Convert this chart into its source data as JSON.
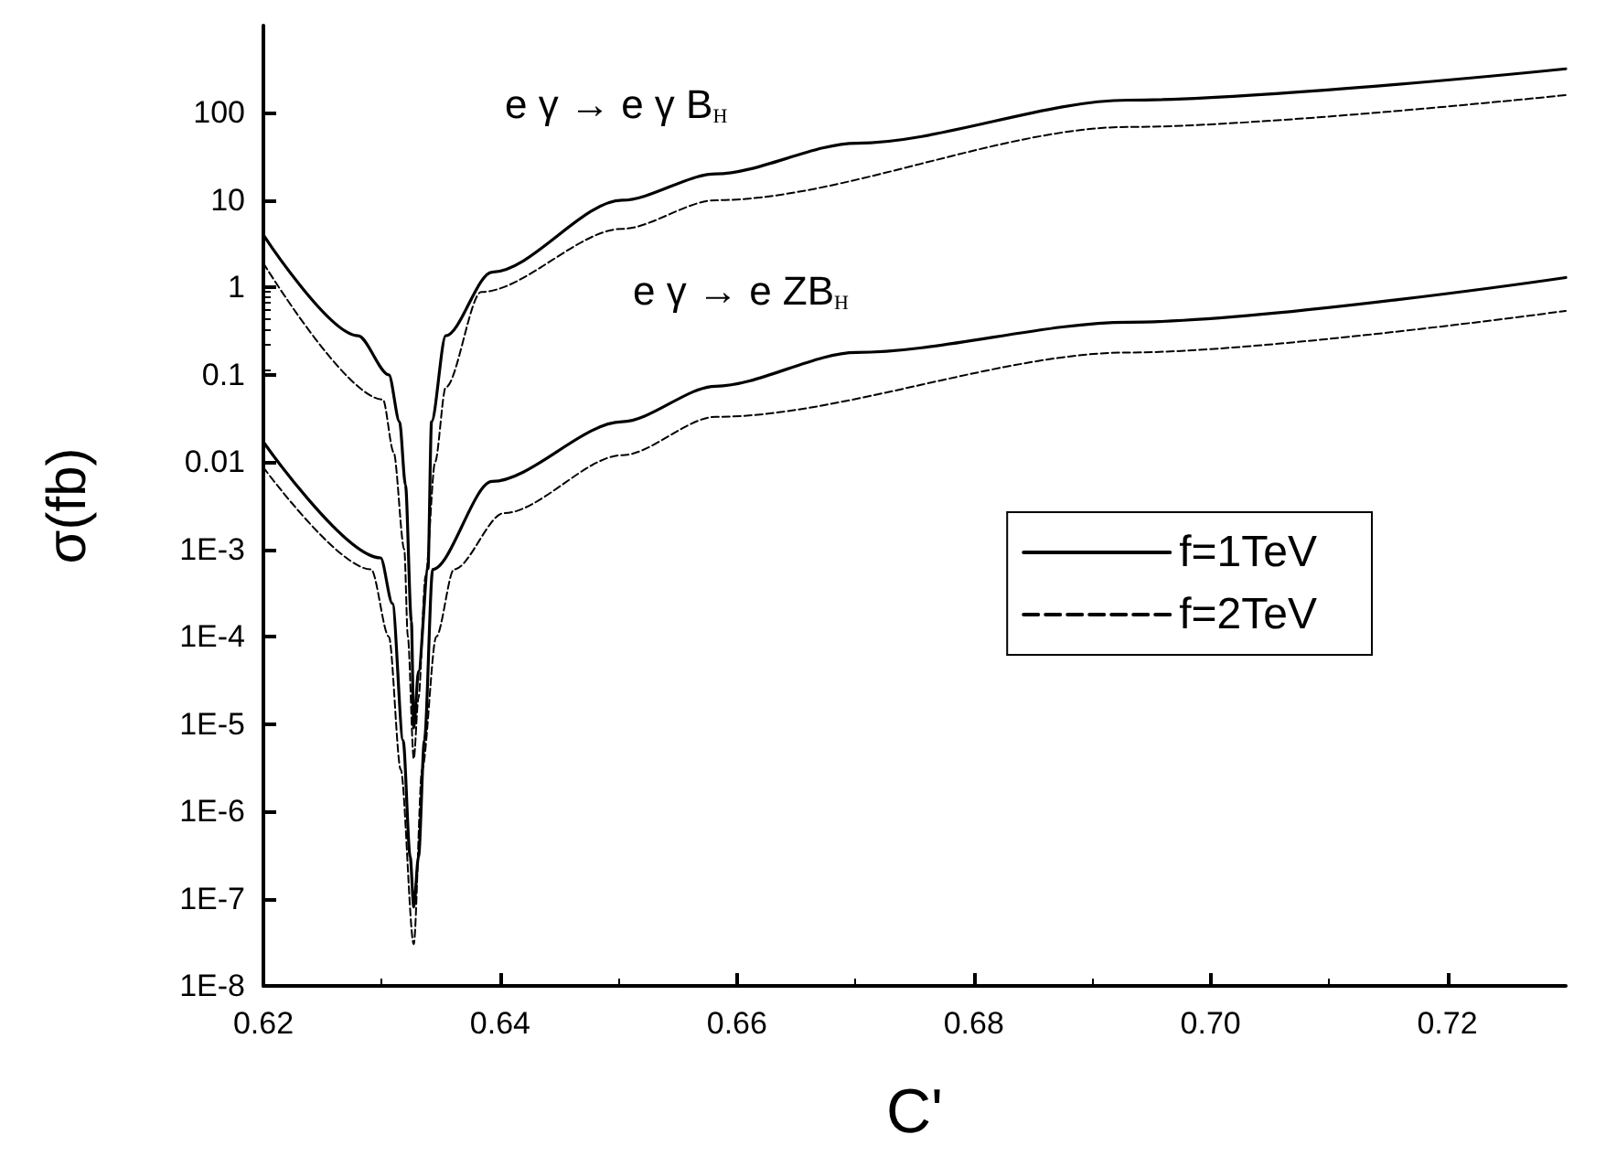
{
  "chart_data": {
    "type": "line",
    "xlabel": "C'",
    "ylabel": "σ(fb)",
    "log": "y",
    "marker": "none",
    "grid": false,
    "legend": "right",
    "xlim": [
      0.62,
      0.73
    ],
    "xticks": [
      0.62,
      0.64,
      0.66,
      0.68,
      {
        "value": 0.7,
        "label": "0.70"
      },
      0.72
    ],
    "ylim": [
      1e-08,
      1000
    ],
    "yticks": [
      {
        "value": 1e-08,
        "label": "1E-8"
      },
      {
        "value": 1e-07,
        "label": "1E-7"
      },
      {
        "value": 1e-06,
        "label": "1E-6"
      },
      {
        "value": 1e-05,
        "label": "1E-5"
      },
      {
        "value": 0.0001,
        "label": "1E-4"
      },
      {
        "value": 0.001,
        "label": "1E-3"
      },
      0.01,
      0.1,
      1,
      10,
      100
    ],
    "annotations": [
      "e γ → e γ B$_{H}$",
      "e γ → e ZB$_{H}$"
    ],
    "series": [
      {
        "name": "f=1TeV",
        "color": "#000000",
        "line_style": "solid",
        "x": [
          0.62,
          0.628,
          0.6306,
          0.6315,
          0.632,
          0.6325,
          0.6327,
          0.6331,
          0.6339,
          0.6342,
          0.6354,
          0.6393,
          0.6503,
          0.6582,
          0.6701,
          0.693,
          0.73
        ],
        "values": [
          4.0,
          0.28,
          0.1,
          0.029,
          0.0055,
          0.00015,
          9e-06,
          4e-05,
          0.0006,
          0.029,
          0.28,
          1.5,
          10,
          20,
          45,
          140,
          320
        ]
      },
      {
        "name": "f=2TeV",
        "color": "#000000",
        "line_style": "dashed",
        "x": [
          0.62,
          0.6301,
          0.631,
          0.6319,
          0.6322,
          0.6327,
          0.6331,
          0.6337,
          0.6345,
          0.6354,
          0.6384,
          0.6503,
          0.6582,
          0.693,
          0.73
        ],
        "values": [
          1.9,
          0.052,
          0.013,
          0.001,
          0.0001,
          4e-06,
          2e-05,
          0.0005,
          0.01,
          0.072,
          0.89,
          4.7,
          10,
          69,
          160
        ]
      },
      {
        "color": "#000000",
        "line_style": "solid",
        "x": [
          0.62,
          0.6299,
          0.6309,
          0.6318,
          0.6324,
          0.6327,
          0.6331,
          0.6336,
          0.6343,
          0.6393,
          0.6503,
          0.6582,
          0.6701,
          0.693,
          0.73
        ],
        "values": [
          0.017,
          0.0008,
          0.00024,
          6.5e-06,
          3e-07,
          8e-08,
          3e-07,
          6.5e-06,
          0.00059,
          0.006,
          0.029,
          0.074,
          0.18,
          0.4,
          1.3
        ]
      },
      {
        "color": "#000000",
        "line_style": "dashed",
        "x": [
          0.62,
          0.6291,
          0.6306,
          0.6316,
          0.6327,
          0.6334,
          0.6346,
          0.6361,
          0.6403,
          0.6503,
          0.6582,
          0.693,
          0.73
        ],
        "values": [
          0.0087,
          0.00059,
          0.0001,
          3e-06,
          3e-08,
          3e-06,
          0.0001,
          0.00059,
          0.0026,
          0.012,
          0.033,
          0.18,
          0.54
        ]
      }
    ]
  }
}
